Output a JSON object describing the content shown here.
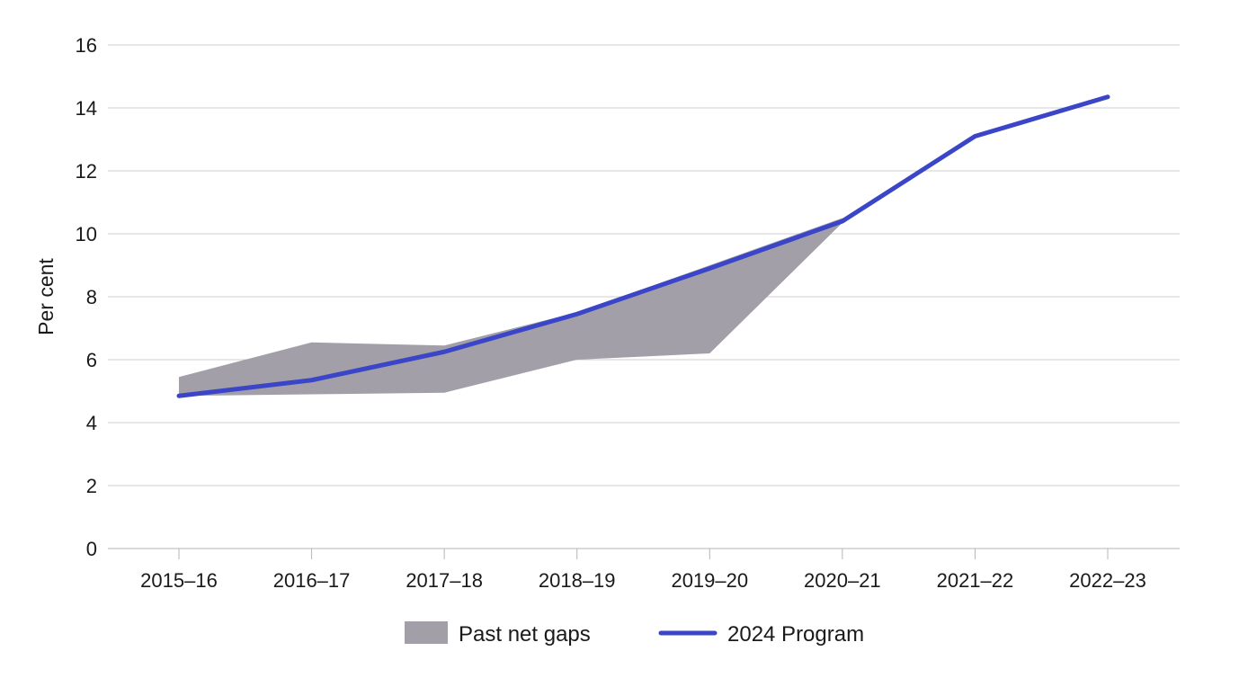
{
  "chart_data": {
    "type": "area",
    "title": "",
    "xlabel": "",
    "ylabel": "Per cent",
    "ylim": [
      0,
      16
    ],
    "yticks": [
      0,
      2,
      4,
      6,
      8,
      10,
      12,
      14,
      16
    ],
    "ytick_labels": [
      "0",
      "2",
      "4",
      "6",
      "8",
      "10",
      "12",
      "14",
      "16"
    ],
    "categories": [
      "2015–16",
      "2016–17",
      "2017–18",
      "2018–19",
      "2019–20",
      "2020–21",
      "2021–22",
      "2022–23"
    ],
    "grid": true,
    "legend_position": "bottom",
    "series": [
      {
        "name": "Past net gaps",
        "kind": "band",
        "color": "#a29fa9",
        "categories": [
          "2015–16",
          "2016–17",
          "2017–18",
          "2018–19",
          "2019–20",
          "2020–21"
        ],
        "upper": [
          5.45,
          6.55,
          6.45,
          7.5,
          9.0,
          10.5
        ],
        "lower": [
          4.85,
          4.9,
          4.95,
          6.0,
          6.2,
          10.35
        ]
      },
      {
        "name": "2024 Program",
        "kind": "line",
        "color": "#3a45c8",
        "values": [
          4.85,
          5.35,
          6.25,
          7.45,
          8.9,
          10.4,
          13.1,
          14.35
        ]
      }
    ]
  }
}
